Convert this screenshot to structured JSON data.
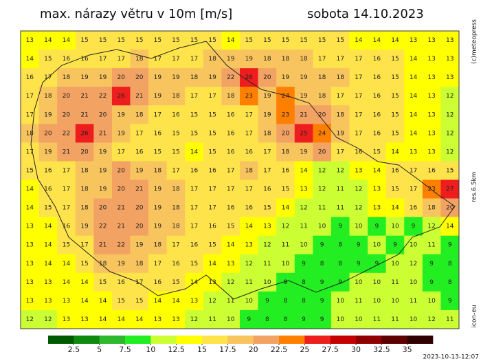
{
  "header": {
    "title": "max. nárazy větru v 10m [m/s]",
    "date": "sobota 14.10.2023"
  },
  "side": {
    "copyright": "(c)meteopress",
    "resolution": "res.6.5km",
    "model": "icon-eu"
  },
  "footer": {
    "timestamp": "2023-10-13-12:07"
  },
  "legend": {
    "lim": [
      0,
      37.5
    ],
    "ticks": [
      2.5,
      5,
      7.5,
      10,
      12.5,
      15,
      17.5,
      20,
      22.5,
      25,
      27.5,
      30,
      32.5,
      35
    ],
    "colors": [
      "#005a00",
      "#0f8a0f",
      "#2eb82e",
      "#22ee22",
      "#ccff33",
      "#ffff00",
      "#ffe34a",
      "#f8c45e",
      "#f2a263",
      "#ff8000",
      "#ee1e1e",
      "#c40000",
      "#8f0000",
      "#5e0000",
      "#300000"
    ]
  },
  "grid": {
    "rows": [
      [
        13,
        14,
        14,
        15,
        15,
        15,
        15,
        15,
        15,
        15,
        15,
        14,
        15,
        15,
        15,
        15,
        15,
        15,
        14,
        14,
        14,
        13,
        13,
        13
      ],
      [
        14,
        15,
        16,
        16,
        17,
        17,
        18,
        17,
        17,
        17,
        18,
        19,
        19,
        18,
        18,
        18,
        17,
        17,
        17,
        16,
        15,
        14,
        13,
        13
      ],
      [
        16,
        17,
        18,
        19,
        19,
        20,
        20,
        19,
        19,
        18,
        19,
        22,
        26,
        20,
        19,
        19,
        18,
        18,
        17,
        16,
        15,
        14,
        13,
        13
      ],
      [
        17,
        18,
        20,
        21,
        22,
        26,
        21,
        19,
        18,
        17,
        17,
        18,
        23,
        19,
        24,
        19,
        18,
        17,
        17,
        16,
        15,
        14,
        13,
        12
      ],
      [
        17,
        19,
        20,
        21,
        20,
        19,
        18,
        17,
        16,
        15,
        15,
        16,
        17,
        19,
        23,
        21,
        20,
        18,
        17,
        16,
        15,
        14,
        13,
        12
      ],
      [
        18,
        20,
        22,
        26,
        21,
        19,
        17,
        16,
        15,
        15,
        15,
        16,
        17,
        18,
        20,
        25,
        24,
        19,
        17,
        16,
        15,
        14,
        13,
        12
      ],
      [
        17,
        19,
        21,
        20,
        19,
        17,
        16,
        15,
        15,
        14,
        15,
        16,
        16,
        17,
        18,
        19,
        20,
        17,
        16,
        15,
        14,
        13,
        13,
        12
      ],
      [
        15,
        16,
        17,
        18,
        19,
        20,
        19,
        18,
        17,
        16,
        16,
        17,
        18,
        17,
        16,
        14,
        12,
        12,
        13,
        14,
        16,
        17,
        16,
        15
      ],
      [
        14,
        16,
        17,
        18,
        19,
        20,
        21,
        19,
        18,
        17,
        17,
        17,
        17,
        16,
        15,
        13,
        12,
        11,
        12,
        13,
        15,
        17,
        23,
        27
      ],
      [
        14,
        15,
        17,
        18,
        20,
        21,
        20,
        19,
        18,
        17,
        17,
        16,
        16,
        15,
        14,
        12,
        11,
        11,
        12,
        13,
        14,
        16,
        18,
        20
      ],
      [
        13,
        14,
        16,
        19,
        22,
        21,
        20,
        19,
        18,
        17,
        16,
        15,
        14,
        13,
        12,
        11,
        10,
        9,
        10,
        9,
        10,
        9,
        12,
        14
      ],
      [
        13,
        14,
        15,
        17,
        21,
        22,
        19,
        18,
        17,
        16,
        15,
        14,
        13,
        12,
        11,
        10,
        9,
        8,
        9,
        10,
        9,
        10,
        11,
        9
      ],
      [
        13,
        14,
        14,
        15,
        18,
        19,
        18,
        17,
        16,
        15,
        14,
        13,
        12,
        11,
        10,
        9,
        8,
        8,
        9,
        9,
        10,
        12,
        9,
        8
      ],
      [
        13,
        13,
        14,
        14,
        15,
        16,
        17,
        16,
        15,
        14,
        13,
        12,
        11,
        10,
        9,
        8,
        9,
        9,
        10,
        10,
        11,
        10,
        9,
        8
      ],
      [
        13,
        13,
        13,
        14,
        14,
        15,
        15,
        14,
        14,
        13,
        12,
        11,
        10,
        9,
        8,
        8,
        9,
        10,
        11,
        10,
        10,
        11,
        10,
        9
      ],
      [
        12,
        12,
        13,
        13,
        14,
        14,
        14,
        13,
        13,
        12,
        11,
        10,
        9,
        8,
        8,
        9,
        9,
        10,
        10,
        11,
        11,
        10,
        12,
        11
      ]
    ]
  }
}
